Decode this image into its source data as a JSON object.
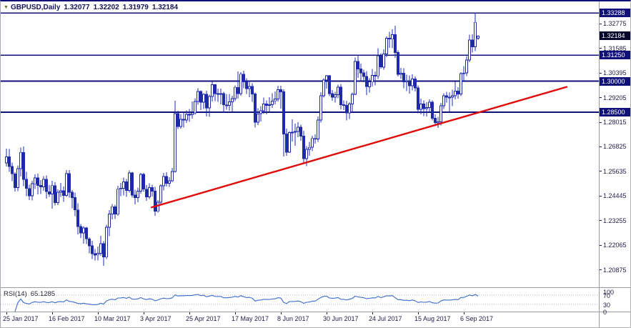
{
  "window": {
    "symbol_label": "GBPUSD,Daily",
    "marker_icon": "▼"
  },
  "quote": {
    "open": "1.32077",
    "high": "1.32202",
    "low": "1.31979",
    "close": "1.32184"
  },
  "colors": {
    "background": "#ffffff",
    "candle": "#1e2aa8",
    "bull_fill": "#ffffff",
    "hline": "#10107a",
    "current_badge_bg": "#06062a",
    "trendline": "#e00b0b",
    "axis_text": "#1c1c46",
    "rsi_line": "#3a6cc8",
    "rsi_level": "#b4b4b4",
    "separator": "#9a9aa2"
  },
  "chart_data": {
    "type": "candlestick",
    "symbol": "GBPUSD",
    "timeframe": "Daily",
    "y_axis": {
      "price_top": 1.3385,
      "price_bottom": 1.2004,
      "ticks": [
        "1.32775",
        "1.31585",
        "1.30395",
        "1.29205",
        "1.28015",
        "1.26825",
        "1.25635",
        "1.24445",
        "1.23255",
        "1.22065",
        "1.20875"
      ]
    },
    "x_axis": {
      "labels": [
        {
          "i": 0,
          "text": "25 Jan 2017"
        },
        {
          "i": 16,
          "text": "16 Feb 2017"
        },
        {
          "i": 32,
          "text": "10 Mar 2017"
        },
        {
          "i": 48,
          "text": "3 Apr 2017"
        },
        {
          "i": 64,
          "text": "25 Apr 2017"
        },
        {
          "i": 80,
          "text": "17 May 2017"
        },
        {
          "i": 96,
          "text": "8 Jun 2017"
        },
        {
          "i": 112,
          "text": "30 Jun 2017"
        },
        {
          "i": 128,
          "text": "24 Jul 2017"
        },
        {
          "i": 144,
          "text": "15 Aug 2017"
        },
        {
          "i": 160,
          "text": "6 Sep 2017"
        }
      ]
    },
    "horizontal_levels": [
      {
        "price": 1.33288,
        "label": "1.33288"
      },
      {
        "price": 1.3125,
        "label": "1.31250"
      },
      {
        "price": 1.3,
        "label": "1.30000"
      },
      {
        "price": 1.285,
        "label": "1.28500"
      }
    ],
    "current_price": {
      "price": 1.32184,
      "label": "1.32184"
    },
    "trendline": {
      "i1": 50.8,
      "p1": 1.239,
      "i2": 196,
      "p2": 1.2972
    },
    "rsi": {
      "name": "RSI(14)",
      "value": "65.1285",
      "period": 14,
      "range": [
        0,
        100
      ],
      "levels": [
        70,
        30
      ],
      "axis_labels": [
        "100",
        "70",
        "30",
        "0"
      ]
    },
    "ohlc": [
      [
        1.2605,
        1.2674,
        1.2588,
        1.2634
      ],
      [
        1.2634,
        1.2672,
        1.2562,
        1.2588
      ],
      [
        1.2588,
        1.2606,
        1.2516,
        1.2552
      ],
      [
        1.2552,
        1.256,
        1.2466,
        1.2486
      ],
      [
        1.2486,
        1.2593,
        1.2468,
        1.2577
      ],
      [
        1.2577,
        1.2679,
        1.254,
        1.2656
      ],
      [
        1.2656,
        1.2685,
        1.2493,
        1.2526
      ],
      [
        1.2526,
        1.2562,
        1.2444,
        1.2481
      ],
      [
        1.2481,
        1.25,
        1.2426,
        1.2446
      ],
      [
        1.2446,
        1.2518,
        1.2424,
        1.2504
      ],
      [
        1.2504,
        1.255,
        1.2478,
        1.2532
      ],
      [
        1.2532,
        1.2553,
        1.2453,
        1.2496
      ],
      [
        1.2496,
        1.2522,
        1.2455,
        1.2489
      ],
      [
        1.2489,
        1.2541,
        1.247,
        1.2525
      ],
      [
        1.2525,
        1.2544,
        1.2432,
        1.2466
      ],
      [
        1.2466,
        1.2498,
        1.244,
        1.2455
      ],
      [
        1.2455,
        1.2519,
        1.2383,
        1.2495
      ],
      [
        1.2495,
        1.2511,
        1.24,
        1.2413
      ],
      [
        1.2413,
        1.2477,
        1.2401,
        1.2463
      ],
      [
        1.2463,
        1.2508,
        1.244,
        1.247
      ],
      [
        1.247,
        1.249,
        1.2417,
        1.2448
      ],
      [
        1.2448,
        1.2571,
        1.244,
        1.2553
      ],
      [
        1.2553,
        1.257,
        1.2438,
        1.2463
      ],
      [
        1.2463,
        1.2473,
        1.2385,
        1.2438
      ],
      [
        1.2438,
        1.2462,
        1.2348,
        1.2378
      ],
      [
        1.2378,
        1.241,
        1.226,
        1.2297
      ],
      [
        1.2297,
        1.231,
        1.2242,
        1.2266
      ],
      [
        1.2266,
        1.23,
        1.2215,
        1.2291
      ],
      [
        1.2291,
        1.2296,
        1.2213,
        1.2238
      ],
      [
        1.2238,
        1.2246,
        1.2168,
        1.2204
      ],
      [
        1.2204,
        1.2229,
        1.214,
        1.2166
      ],
      [
        1.2166,
        1.2189,
        1.2133,
        1.216
      ],
      [
        1.216,
        1.2201,
        1.2134,
        1.2168
      ],
      [
        1.2168,
        1.2252,
        1.2156,
        1.2215
      ],
      [
        1.2215,
        1.2226,
        1.2108,
        1.215
      ],
      [
        1.215,
        1.2306,
        1.214,
        1.2294
      ],
      [
        1.2294,
        1.2377,
        1.2251,
        1.2358
      ],
      [
        1.2358,
        1.2407,
        1.2332,
        1.2393
      ],
      [
        1.2393,
        1.2402,
        1.2334,
        1.2357
      ],
      [
        1.2357,
        1.2494,
        1.235,
        1.2478
      ],
      [
        1.2478,
        1.2508,
        1.2444,
        1.2482
      ],
      [
        1.2482,
        1.2534,
        1.2448,
        1.2514
      ],
      [
        1.2514,
        1.2527,
        1.244,
        1.2472
      ],
      [
        1.2472,
        1.2568,
        1.2461,
        1.2556
      ],
      [
        1.2556,
        1.2562,
        1.2438,
        1.2449
      ],
      [
        1.2449,
        1.2476,
        1.2405,
        1.2438
      ],
      [
        1.2438,
        1.2486,
        1.2415,
        1.2468
      ],
      [
        1.2468,
        1.2556,
        1.2457,
        1.2549
      ],
      [
        1.2549,
        1.2557,
        1.2465,
        1.2478
      ],
      [
        1.2478,
        1.2497,
        1.2421,
        1.2441
      ],
      [
        1.2441,
        1.2507,
        1.243,
        1.2486
      ],
      [
        1.2486,
        1.25,
        1.2443,
        1.2468
      ],
      [
        1.2468,
        1.2489,
        1.235,
        1.2371
      ],
      [
        1.2371,
        1.2425,
        1.2365,
        1.2415
      ],
      [
        1.2415,
        1.2502,
        1.2407,
        1.2494
      ],
      [
        1.2494,
        1.2556,
        1.2471,
        1.254
      ],
      [
        1.254,
        1.256,
        1.249,
        1.2507
      ],
      [
        1.2507,
        1.2535,
        1.2489,
        1.2519
      ],
      [
        1.2519,
        1.258,
        1.2513,
        1.2564
      ],
      [
        1.2564,
        1.2905,
        1.2558,
        1.2843
      ],
      [
        1.2843,
        1.2857,
        1.2768,
        1.278
      ],
      [
        1.278,
        1.2842,
        1.277,
        1.2816
      ],
      [
        1.2816,
        1.2848,
        1.2775,
        1.2812
      ],
      [
        1.2812,
        1.2859,
        1.2798,
        1.284
      ],
      [
        1.284,
        1.2866,
        1.2804,
        1.2838
      ],
      [
        1.2838,
        1.2902,
        1.2818,
        1.2847
      ],
      [
        1.2847,
        1.2918,
        1.2837,
        1.2901
      ],
      [
        1.2901,
        1.2965,
        1.2886,
        1.295
      ],
      [
        1.295,
        1.2956,
        1.2861,
        1.2899
      ],
      [
        1.2899,
        1.2941,
        1.2865,
        1.2936
      ],
      [
        1.2936,
        1.2954,
        1.283,
        1.287
      ],
      [
        1.287,
        1.2935,
        1.2827,
        1.2925
      ],
      [
        1.2925,
        1.2997,
        1.2902,
        1.2983
      ],
      [
        1.2983,
        1.2987,
        1.2903,
        1.294
      ],
      [
        1.294,
        1.2963,
        1.29,
        1.2936
      ],
      [
        1.2936,
        1.2963,
        1.2887,
        1.294
      ],
      [
        1.294,
        1.2949,
        1.2847,
        1.2885
      ],
      [
        1.2885,
        1.2938,
        1.2862,
        1.2883
      ],
      [
        1.2883,
        1.2938,
        1.2856,
        1.29
      ],
      [
        1.29,
        1.293,
        1.2854,
        1.2915
      ],
      [
        1.2915,
        1.298,
        1.2903,
        1.297
      ],
      [
        1.297,
        1.3047,
        1.2915,
        1.294
      ],
      [
        1.294,
        1.3043,
        1.293,
        1.3034
      ],
      [
        1.3034,
        1.305,
        1.2966,
        1.2996
      ],
      [
        1.2996,
        1.3014,
        1.2938,
        1.2963
      ],
      [
        1.2963,
        1.3003,
        1.2922,
        1.2974
      ],
      [
        1.2974,
        1.299,
        1.29,
        1.2938
      ],
      [
        1.2938,
        1.2945,
        1.2775,
        1.2802
      ],
      [
        1.2802,
        1.2868,
        1.2788,
        1.2842
      ],
      [
        1.2842,
        1.288,
        1.2805,
        1.2857
      ],
      [
        1.2857,
        1.292,
        1.2842,
        1.2889
      ],
      [
        1.2889,
        1.2906,
        1.284,
        1.2882
      ],
      [
        1.2882,
        1.2922,
        1.2848,
        1.2886
      ],
      [
        1.2886,
        1.2942,
        1.287,
        1.2904
      ],
      [
        1.2904,
        1.295,
        1.2888,
        1.2914
      ],
      [
        1.2914,
        1.2978,
        1.2901,
        1.2959
      ],
      [
        1.2959,
        1.2978,
        1.2867,
        1.2949
      ],
      [
        1.2949,
        1.296,
        1.2636,
        1.2744
      ],
      [
        1.2744,
        1.2771,
        1.2639,
        1.2657
      ],
      [
        1.2657,
        1.2758,
        1.2653,
        1.2751
      ],
      [
        1.2751,
        1.2815,
        1.2709,
        1.2754
      ],
      [
        1.2754,
        1.2795,
        1.2687,
        1.2757
      ],
      [
        1.2757,
        1.2802,
        1.2729,
        1.2778
      ],
      [
        1.2778,
        1.2789,
        1.2712,
        1.2735
      ],
      [
        1.2735,
        1.276,
        1.2602,
        1.2626
      ],
      [
        1.2626,
        1.2686,
        1.2589,
        1.267
      ],
      [
        1.267,
        1.2706,
        1.264,
        1.268
      ],
      [
        1.268,
        1.2736,
        1.2662,
        1.2723
      ],
      [
        1.2723,
        1.2742,
        1.2698,
        1.272
      ],
      [
        1.272,
        1.283,
        1.2706,
        1.2812
      ],
      [
        1.2812,
        1.2946,
        1.28,
        1.293
      ],
      [
        1.293,
        1.3014,
        1.292,
        1.3006
      ],
      [
        1.3006,
        1.3029,
        1.2963,
        1.3026
      ],
      [
        1.3026,
        1.303,
        1.2928,
        1.2939
      ],
      [
        1.2939,
        1.2957,
        1.2905,
        1.2923
      ],
      [
        1.2923,
        1.2949,
        1.2896,
        1.2935
      ],
      [
        1.2935,
        1.2982,
        1.2918,
        1.2971
      ],
      [
        1.2971,
        1.2987,
        1.2864,
        1.2886
      ],
      [
        1.2886,
        1.2906,
        1.286,
        1.2882
      ],
      [
        1.2882,
        1.2905,
        1.2811,
        1.2846
      ],
      [
        1.2846,
        1.2898,
        1.2817,
        1.2889
      ],
      [
        1.2889,
        1.2945,
        1.2848,
        1.2937
      ],
      [
        1.2937,
        1.3114,
        1.2932,
        1.3095
      ],
      [
        1.3095,
        1.3126,
        1.3016,
        1.3059
      ],
      [
        1.3059,
        1.3085,
        1.3003,
        1.304
      ],
      [
        1.304,
        1.3055,
        1.2995,
        1.3022
      ],
      [
        1.3022,
        1.3048,
        1.2933,
        1.2973
      ],
      [
        1.2973,
        1.3013,
        1.2945,
        1.2996
      ],
      [
        1.2996,
        1.3058,
        1.2975,
        1.3028
      ],
      [
        1.3028,
        1.3046,
        1.2979,
        1.3025
      ],
      [
        1.3025,
        1.3158,
        1.301,
        1.3122
      ],
      [
        1.3122,
        1.3135,
        1.306,
        1.3068
      ],
      [
        1.3068,
        1.3153,
        1.3055,
        1.3131
      ],
      [
        1.3131,
        1.3215,
        1.3115,
        1.3208
      ],
      [
        1.3208,
        1.3238,
        1.3161,
        1.3203
      ],
      [
        1.3203,
        1.325,
        1.3158,
        1.3225
      ],
      [
        1.3225,
        1.3267,
        1.3113,
        1.3138
      ],
      [
        1.3138,
        1.3149,
        1.3022,
        1.3032
      ],
      [
        1.3032,
        1.3064,
        1.301,
        1.3038
      ],
      [
        1.3038,
        1.3062,
        1.2966,
        1.2996
      ],
      [
        1.2996,
        1.3031,
        1.2952,
        1.3002
      ],
      [
        1.3002,
        1.3027,
        1.294,
        1.2977
      ],
      [
        1.2977,
        1.3032,
        1.2955,
        1.301
      ],
      [
        1.301,
        1.3022,
        1.295,
        1.2967
      ],
      [
        1.2967,
        1.2979,
        1.2845,
        1.2863
      ],
      [
        1.2863,
        1.2915,
        1.284,
        1.289
      ],
      [
        1.289,
        1.2906,
        1.2831,
        1.2867
      ],
      [
        1.2867,
        1.2899,
        1.283,
        1.2873
      ],
      [
        1.2873,
        1.2912,
        1.2852,
        1.2899
      ],
      [
        1.2899,
        1.2906,
        1.281,
        1.2821
      ],
      [
        1.2821,
        1.2839,
        1.2783,
        1.2799
      ],
      [
        1.2799,
        1.2827,
        1.2774,
        1.2803
      ],
      [
        1.2803,
        1.2894,
        1.2786,
        1.2881
      ],
      [
        1.2881,
        1.2942,
        1.2866,
        1.293
      ],
      [
        1.293,
        1.2948,
        1.2896,
        1.2922
      ],
      [
        1.2922,
        1.2944,
        1.2853,
        1.2923
      ],
      [
        1.2923,
        1.2958,
        1.288,
        1.293
      ],
      [
        1.293,
        1.2996,
        1.2912,
        1.2952
      ],
      [
        1.2952,
        1.2971,
        1.2915,
        1.2938
      ],
      [
        1.2938,
        1.3043,
        1.2928,
        1.3036
      ],
      [
        1.3036,
        1.3072,
        1.3001,
        1.3039
      ],
      [
        1.3039,
        1.3121,
        1.3025,
        1.3102
      ],
      [
        1.3102,
        1.3224,
        1.3092,
        1.3199
      ],
      [
        1.3199,
        1.3227,
        1.3139,
        1.3166
      ],
      [
        1.3166,
        1.33288,
        1.3145,
        1.3284
      ],
      [
        1.32077,
        1.32202,
        1.31979,
        1.32184
      ]
    ]
  }
}
